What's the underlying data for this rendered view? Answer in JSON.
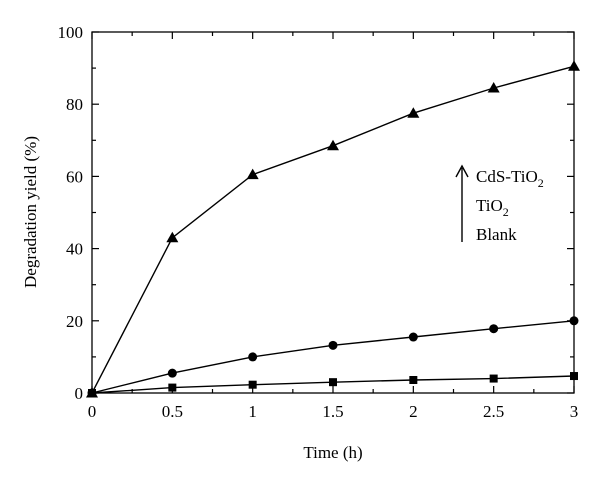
{
  "chart_data": {
    "type": "line",
    "title": "",
    "xlabel": "Time (h)",
    "ylabel": "Degradation yield (%)",
    "xlim": [
      0,
      3
    ],
    "ylim": [
      0,
      100
    ],
    "x_ticks": [
      "0",
      "0.5",
      "1",
      "1.5",
      "2",
      "2.5",
      "3"
    ],
    "y_ticks": [
      "0",
      "20",
      "40",
      "60",
      "80",
      "100"
    ],
    "x": [
      0,
      0.5,
      1,
      1.5,
      2,
      2.5,
      3
    ],
    "grid": false,
    "series": [
      {
        "name": "CdS-TiO2",
        "marker": "triangle",
        "values": [
          0,
          43.0,
          60.5,
          68.5,
          77.5,
          84.5,
          90.5
        ]
      },
      {
        "name": "TiO2",
        "marker": "circle",
        "values": [
          0,
          5.5,
          10.0,
          13.2,
          15.5,
          17.8,
          20.0
        ]
      },
      {
        "name": "Blank",
        "marker": "square",
        "values": [
          0,
          1.5,
          2.3,
          3.0,
          3.6,
          4.0,
          4.7
        ]
      }
    ],
    "legend": {
      "placement": "right",
      "items": [
        {
          "base": "CdS-TiO",
          "sub": "2"
        },
        {
          "base": "TiO",
          "sub": "2"
        },
        {
          "base": "Blank",
          "sub": ""
        }
      ]
    },
    "colors": {
      "line": "#000000",
      "marker": "#000000"
    }
  }
}
